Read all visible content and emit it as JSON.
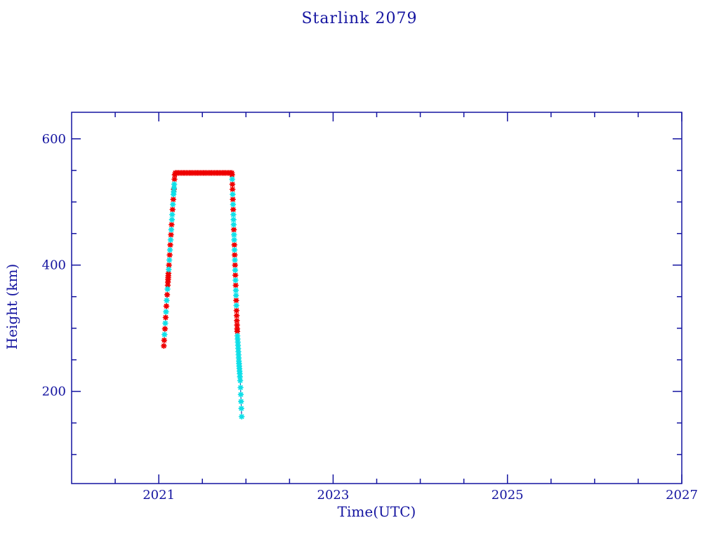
{
  "page": {
    "background": "#ffffff",
    "accent_color": "#1414a0"
  },
  "chart_data": {
    "type": "scatter",
    "title": "Starlink 2079",
    "xlabel": "Time(UTC)",
    "ylabel": "Height (km)",
    "xlim": [
      2020,
      2027
    ],
    "ylim": [
      54,
      642
    ],
    "grid": false,
    "legend": "none",
    "axis_color": "#1414a0",
    "line_color": "#00008b",
    "x_major_ticks": [
      2021,
      2023,
      2025,
      2027
    ],
    "x_tick_labels": [
      "2021",
      "2023",
      "2025",
      "2027"
    ],
    "x_minor_ticks": [
      2020.5,
      2021.5,
      2022,
      2022.5,
      2023.5,
      2024,
      2024.5,
      2025.5,
      2026,
      2026.5
    ],
    "y_major_ticks": [
      200,
      400,
      600
    ],
    "y_tick_labels": [
      "200",
      "400",
      "600"
    ],
    "y_minor_ticks": [
      100,
      150,
      250,
      300,
      350,
      450,
      500,
      550
    ],
    "description": "Orbital height of Starlink 2079: launch ascent early 2021 to ~546 km, operational plateau through late 2021, then decay re-entry to ~160 km near end of 2021.",
    "series": [
      {
        "name": "height-red",
        "marker": "asterisk",
        "color": "#ee0000",
        "points": [
          [
            2021.058,
            272
          ],
          [
            2021.062,
            281
          ],
          [
            2021.071,
            299
          ],
          [
            2021.079,
            317
          ],
          [
            2021.087,
            335
          ],
          [
            2021.096,
            353
          ],
          [
            2021.103,
            368
          ],
          [
            2021.105,
            373
          ],
          [
            2021.107,
            377
          ],
          [
            2021.108,
            380
          ],
          [
            2021.109,
            383
          ],
          [
            2021.111,
            387
          ],
          [
            2021.117,
            400
          ],
          [
            2021.125,
            416
          ],
          [
            2021.132,
            432
          ],
          [
            2021.14,
            448
          ],
          [
            2021.147,
            464
          ],
          [
            2021.158,
            488
          ],
          [
            2021.166,
            504
          ],
          [
            2021.173,
            520
          ],
          [
            2021.18,
            536
          ],
          [
            2021.183,
            543
          ],
          [
            2021.19,
            546
          ],
          [
            2021.208,
            546
          ],
          [
            2021.226,
            546
          ],
          [
            2021.244,
            546
          ],
          [
            2021.262,
            546
          ],
          [
            2021.28,
            546
          ],
          [
            2021.298,
            546
          ],
          [
            2021.316,
            546
          ],
          [
            2021.334,
            546
          ],
          [
            2021.352,
            546
          ],
          [
            2021.37,
            546
          ],
          [
            2021.388,
            546
          ],
          [
            2021.406,
            546
          ],
          [
            2021.424,
            546
          ],
          [
            2021.442,
            546
          ],
          [
            2021.46,
            546
          ],
          [
            2021.478,
            546
          ],
          [
            2021.496,
            546
          ],
          [
            2021.514,
            546
          ],
          [
            2021.532,
            546
          ],
          [
            2021.55,
            546
          ],
          [
            2021.568,
            546
          ],
          [
            2021.586,
            546
          ],
          [
            2021.604,
            546
          ],
          [
            2021.622,
            546
          ],
          [
            2021.64,
            546
          ],
          [
            2021.658,
            546
          ],
          [
            2021.676,
            546
          ],
          [
            2021.694,
            546
          ],
          [
            2021.712,
            546
          ],
          [
            2021.73,
            546
          ],
          [
            2021.748,
            546
          ],
          [
            2021.766,
            546
          ],
          [
            2021.784,
            546
          ],
          [
            2021.802,
            546
          ],
          [
            2021.82,
            546
          ],
          [
            2021.838,
            546
          ],
          [
            2021.8405,
            543
          ],
          [
            2021.8441,
            528
          ],
          [
            2021.846,
            520
          ],
          [
            2021.8498,
            504
          ],
          [
            2021.8537,
            488
          ],
          [
            2021.8614,
            456
          ],
          [
            2021.8671,
            432
          ],
          [
            2021.871,
            416
          ],
          [
            2021.8748,
            400
          ],
          [
            2021.8786,
            384
          ],
          [
            2021.8825,
            368
          ],
          [
            2021.8882,
            344
          ],
          [
            2021.8921,
            328
          ],
          [
            2021.894,
            320
          ],
          [
            2021.8959,
            312
          ],
          [
            2021.8978,
            305
          ],
          [
            2021.8992,
            299
          ],
          [
            2021.9002,
            295
          ]
        ]
      },
      {
        "name": "height-cyan",
        "marker": "asterisk",
        "color": "#0fdfe8",
        "points": [
          [
            2021.066,
            290
          ],
          [
            2021.075,
            308
          ],
          [
            2021.083,
            326
          ],
          [
            2021.091,
            344
          ],
          [
            2021.1,
            362
          ],
          [
            2021.114,
            393
          ],
          [
            2021.121,
            408
          ],
          [
            2021.128,
            424
          ],
          [
            2021.136,
            440
          ],
          [
            2021.143,
            456
          ],
          [
            2021.151,
            472
          ],
          [
            2021.154,
            480
          ],
          [
            2021.162,
            496
          ],
          [
            2021.169,
            512
          ],
          [
            2021.172,
            516
          ],
          [
            2021.175,
            522
          ],
          [
            2021.177,
            528
          ],
          [
            2021.8422,
            536
          ],
          [
            2021.8479,
            512
          ],
          [
            2021.8518,
            496
          ],
          [
            2021.8556,
            480
          ],
          [
            2021.8575,
            472
          ],
          [
            2021.8594,
            464
          ],
          [
            2021.8633,
            448
          ],
          [
            2021.8652,
            440
          ],
          [
            2021.869,
            424
          ],
          [
            2021.8729,
            408
          ],
          [
            2021.8767,
            392
          ],
          [
            2021.8806,
            376
          ],
          [
            2021.8844,
            360
          ],
          [
            2021.8863,
            352
          ],
          [
            2021.8902,
            336
          ],
          [
            2021.902,
            288
          ],
          [
            2021.9045,
            283
          ],
          [
            2021.907,
            278
          ],
          [
            2021.909,
            273
          ],
          [
            2021.911,
            268
          ],
          [
            2021.913,
            263
          ],
          [
            2021.915,
            258
          ],
          [
            2021.917,
            253
          ],
          [
            2021.919,
            248
          ],
          [
            2021.921,
            244
          ],
          [
            2021.923,
            240
          ],
          [
            2021.925,
            236
          ],
          [
            2021.927,
            232
          ],
          [
            2021.929,
            228
          ],
          [
            2021.931,
            223
          ],
          [
            2021.934,
            217
          ],
          [
            2021.938,
            206
          ],
          [
            2021.941,
            195
          ],
          [
            2021.944,
            184
          ],
          [
            2021.947,
            173
          ],
          [
            2021.951,
            160
          ]
        ]
      }
    ]
  }
}
